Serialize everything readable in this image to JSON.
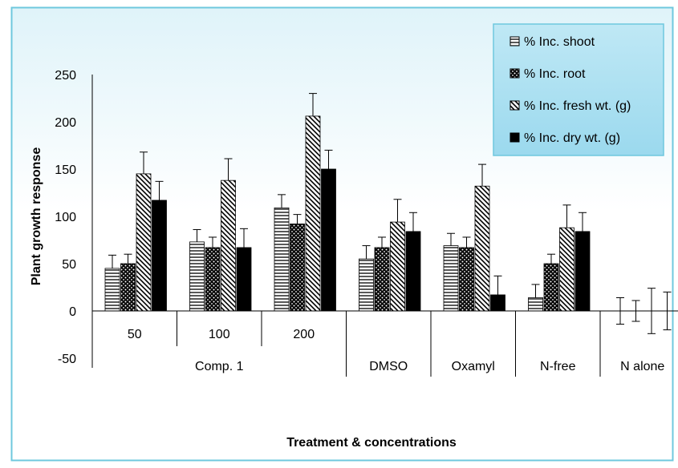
{
  "chart_data": {
    "type": "bar",
    "ylabel": "Plant growth response",
    "xlabel": "Treatment & concentrations",
    "ylim": [
      -50,
      250
    ],
    "yticks": [
      250,
      200,
      150,
      100,
      50,
      0,
      -50
    ],
    "categories": [
      "50",
      "100",
      "200",
      "DMSO",
      "Oxamyl",
      "N-free",
      "N alone"
    ],
    "groups": [
      {
        "label": "Comp. 1",
        "categories": [
          "50",
          "100",
          "200"
        ]
      },
      {
        "label": "DMSO",
        "categories": [
          "DMSO"
        ]
      },
      {
        "label": "Oxamyl",
        "categories": [
          "Oxamyl"
        ]
      },
      {
        "label": "N-free",
        "categories": [
          "N-free"
        ]
      },
      {
        "label": "N alone",
        "categories": [
          "N alone"
        ]
      }
    ],
    "tick_labels": [
      "50",
      "100",
      "200"
    ],
    "series": [
      {
        "name": "% Inc. shoot",
        "pattern": "horizontal-lines",
        "values": [
          45,
          73,
          109,
          55,
          69,
          14,
          0
        ],
        "errors": [
          14,
          13,
          14,
          14,
          13,
          14,
          14
        ]
      },
      {
        "name": "% Inc. root",
        "pattern": "dots",
        "values": [
          50,
          67,
          92,
          67,
          67,
          50,
          0
        ],
        "errors": [
          10,
          11,
          10,
          11,
          11,
          10,
          11
        ]
      },
      {
        "name": "% Inc. fresh wt. (g)",
        "pattern": "diagonal-lines",
        "values": [
          145,
          138,
          206,
          94,
          132,
          88,
          0
        ],
        "errors": [
          23,
          23,
          24,
          24,
          23,
          24,
          24
        ]
      },
      {
        "name": "% Inc. dry wt. (g)",
        "pattern": "solid",
        "values": [
          117,
          67,
          150,
          84,
          17,
          84,
          0
        ],
        "errors": [
          20,
          20,
          20,
          20,
          20,
          20,
          20
        ]
      }
    ],
    "legend": "top-right",
    "grid": false,
    "colors": {
      "bars": "#000000",
      "frame": "#6fc8de",
      "legend_bg": "#a8dff0",
      "background_top": "#eaf7fb"
    }
  }
}
